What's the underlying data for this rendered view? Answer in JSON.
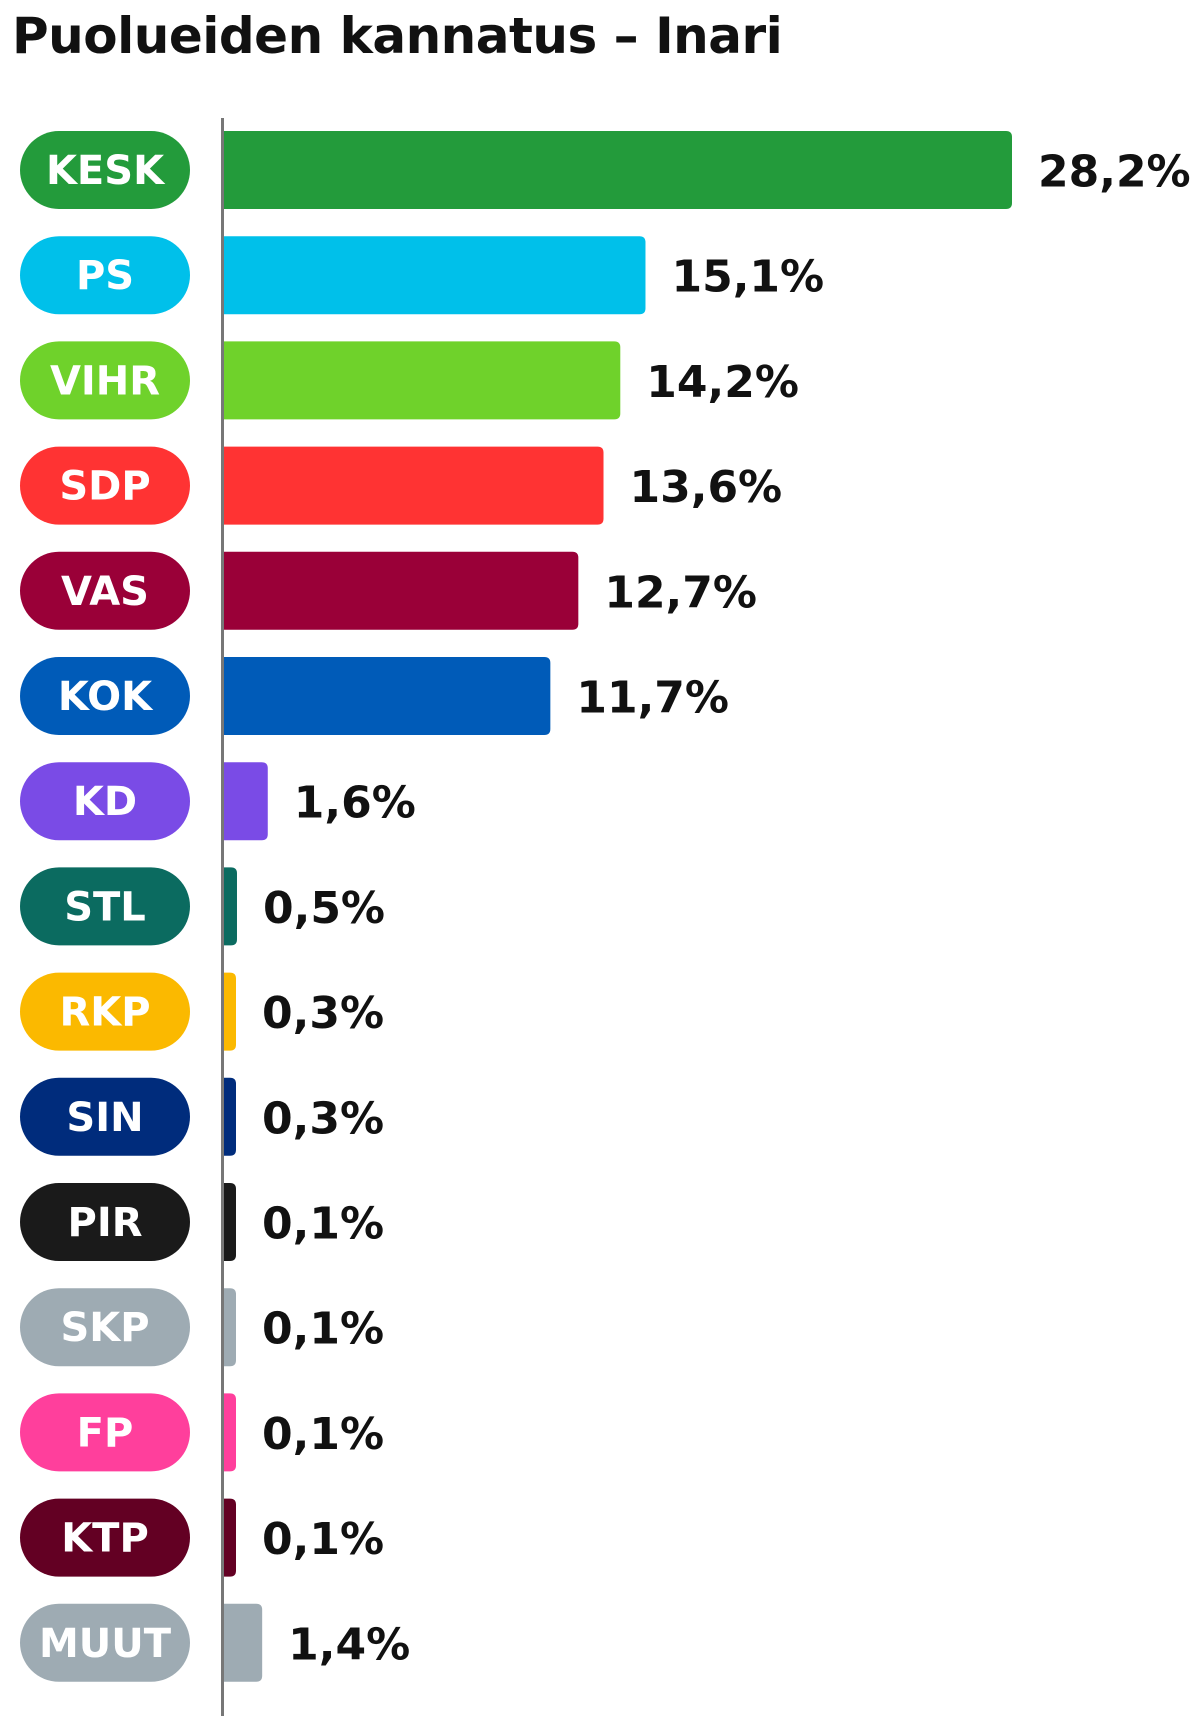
{
  "chart_data": {
    "type": "bar",
    "orientation": "horizontal",
    "title": "Puolueiden kannatus – Inari",
    "categories": [
      "KESK",
      "PS",
      "VIHR",
      "SDP",
      "VAS",
      "KOK",
      "KD",
      "STL",
      "RKP",
      "SIN",
      "PIR",
      "SKP",
      "FP",
      "KTP",
      "MUUT"
    ],
    "values": [
      28.2,
      15.1,
      14.2,
      13.6,
      12.7,
      11.7,
      1.6,
      0.5,
      0.3,
      0.3,
      0.1,
      0.1,
      0.1,
      0.1,
      1.4
    ],
    "value_labels": [
      "28,2%",
      "15,1%",
      "14,2%",
      "13,6%",
      "12,7%",
      "11,7%",
      "1,6%",
      "0,5%",
      "0,3%",
      "0,3%",
      "0,1%",
      "0,1%",
      "0,1%",
      "0,1%",
      "1,4%"
    ],
    "colors": [
      "#239b3b",
      "#00c0ea",
      "#6fd22b",
      "#ff3333",
      "#9a0038",
      "#005bb8",
      "#7a4be6",
      "#0b6b60",
      "#fbb900",
      "#002c7c",
      "#1a1a1a",
      "#9eabb3",
      "#ff3f9c",
      "#630023",
      "#9eabb3"
    ],
    "unit": "%",
    "xlabel": "",
    "ylabel": "",
    "grid": false,
    "legend": "none"
  }
}
